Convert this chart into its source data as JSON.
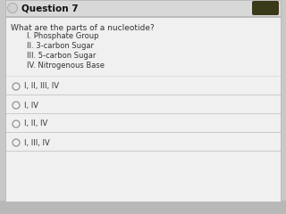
{
  "title": "Question 7",
  "question": "What are the parts of a nucleotide?",
  "options_list": [
    "I. Phosphate Group",
    "II. 3-carbon Sugar",
    "III. 5-carbon Sugar",
    "IV. Nitrogenous Base"
  ],
  "answer_choices": [
    "I, II, III, IV",
    "I, IV",
    "I, II, IV",
    "I, III, IV"
  ],
  "outer_bg": "#c8c8c8",
  "card_color": "#f0f0f0",
  "header_color": "#d8d8d8",
  "title_fontsize": 7.5,
  "question_fontsize": 6.5,
  "option_fontsize": 6.0,
  "answer_fontsize": 6.0,
  "title_color": "#111111",
  "text_color": "#333333",
  "circle_edge_color": "#888888",
  "divider_color": "#bbbbbb",
  "pencil_color": "#3a3a1a"
}
